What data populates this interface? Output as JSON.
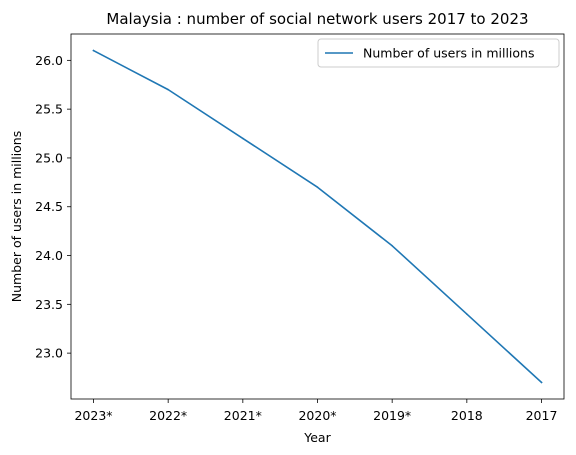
{
  "chart_data": {
    "type": "line",
    "title": "Malaysia : number of social network users 2017 to 2023",
    "xlabel": "Year",
    "ylabel": "Number of users in millions",
    "categories": [
      "2023*",
      "2022*",
      "2021*",
      "2020*",
      "2019*",
      "2018",
      "2017"
    ],
    "series": [
      {
        "name": "Number of users in millions",
        "color": "#1f77b4",
        "values": [
          26.1,
          25.7,
          25.2,
          24.7,
          24.1,
          23.4,
          22.7
        ]
      }
    ],
    "ylim": [
      22.53,
      26.27
    ],
    "yticks": [
      23.0,
      23.5,
      24.0,
      24.5,
      25.0,
      25.5,
      26.0
    ],
    "ytick_labels": [
      "23.0",
      "23.5",
      "24.0",
      "24.5",
      "25.0",
      "25.5",
      "26.0"
    ],
    "grid": false,
    "legend": "upper-right"
  }
}
